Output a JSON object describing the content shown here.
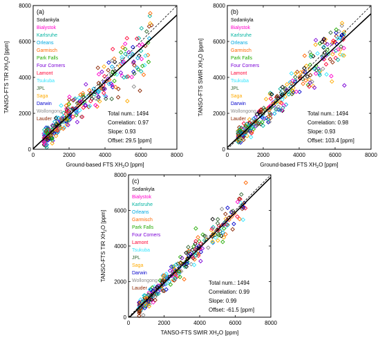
{
  "legend_sites": [
    {
      "name": "Sodankyla",
      "color": "#000000"
    },
    {
      "name": "Bialystok",
      "color": "#ff00cc"
    },
    {
      "name": "Karlsruhe",
      "color": "#00b3a0"
    },
    {
      "name": "Orleans",
      "color": "#00a8e0"
    },
    {
      "name": "Garmisch",
      "color": "#ff6600"
    },
    {
      "name": "Park Falls",
      "color": "#22aa00"
    },
    {
      "name": "Four Corners",
      "color": "#7a00d6"
    },
    {
      "name": "Lamont",
      "color": "#ff0033"
    },
    {
      "name": "Tsukuba",
      "color": "#33e6ff"
    },
    {
      "name": "JPL",
      "color": "#336633"
    },
    {
      "name": "Saga",
      "color": "#ffaa00"
    },
    {
      "name": "Darwin",
      "color": "#0000cc"
    },
    {
      "name": "Wollongong",
      "color": "#888888"
    },
    {
      "name": "Lauder",
      "color": "#8b2500"
    }
  ],
  "chart_data": [
    {
      "type": "scatter",
      "panel_label": "(a)",
      "xlabel_main": "Ground-based FTS XH",
      "xlabel_sub": "2",
      "xlabel_tail": "O [ppm]",
      "ylabel_main": "TANSO-FTS TIR XH",
      "ylabel_sub": "2",
      "ylabel_tail": "O [ppm]",
      "xlim": [
        0,
        8000
      ],
      "ylim": [
        0,
        8000
      ],
      "xticks": [
        "0",
        "2000",
        "4000",
        "6000",
        "8000"
      ],
      "yticks": [
        "0",
        "2000",
        "4000",
        "6000",
        "8000"
      ],
      "stats": [
        "Total num.: 1494",
        "Correlation: 0.97",
        "Slope: 0.93",
        "Offset: 29.5 [ppm]"
      ],
      "fit": {
        "slope": 0.93,
        "offset": 29.5
      },
      "one_to_one": true,
      "legend": "upper-left"
    },
    {
      "type": "scatter",
      "panel_label": "(b)",
      "xlabel_main": "Ground-based FTS XH",
      "xlabel_sub": "2",
      "xlabel_tail": "O [ppm]",
      "ylabel_main": "TANSO-FTS SWIR XH",
      "ylabel_sub": "2",
      "ylabel_tail": "O [ppm]",
      "xlim": [
        0,
        8000
      ],
      "ylim": [
        0,
        8000
      ],
      "xticks": [
        "0",
        "2000",
        "4000",
        "6000",
        "8000"
      ],
      "yticks": [
        "0",
        "2000",
        "4000",
        "6000",
        "8000"
      ],
      "stats": [
        "Total num.: 1494",
        "Correlation: 0.98",
        "Slope: 0.93",
        "Offset: 103.4 [ppm]"
      ],
      "fit": {
        "slope": 0.93,
        "offset": 103.4
      },
      "one_to_one": true,
      "legend": "upper-left"
    },
    {
      "type": "scatter",
      "panel_label": "(c)",
      "xlabel_main": "TANSO-FTS SWIR XH",
      "xlabel_sub": "2",
      "xlabel_tail": "O [ppm]",
      "ylabel_main": "TANSO-FTS TIR XH",
      "ylabel_sub": "2",
      "ylabel_tail": "O [ppm]",
      "xlim": [
        0,
        8000
      ],
      "ylim": [
        0,
        8000
      ],
      "xticks": [
        "0",
        "2000",
        "4000",
        "6000",
        "8000"
      ],
      "yticks": [
        "0",
        "2000",
        "4000",
        "6000",
        "8000"
      ],
      "stats": [
        "Total num.: 1494",
        "Correlation: 0.99",
        "Slope: 0.99",
        "Offset: -61.5 [ppm]"
      ],
      "fit": {
        "slope": 0.99,
        "offset": -61.5
      },
      "one_to_one": true,
      "legend": "upper-left"
    }
  ]
}
